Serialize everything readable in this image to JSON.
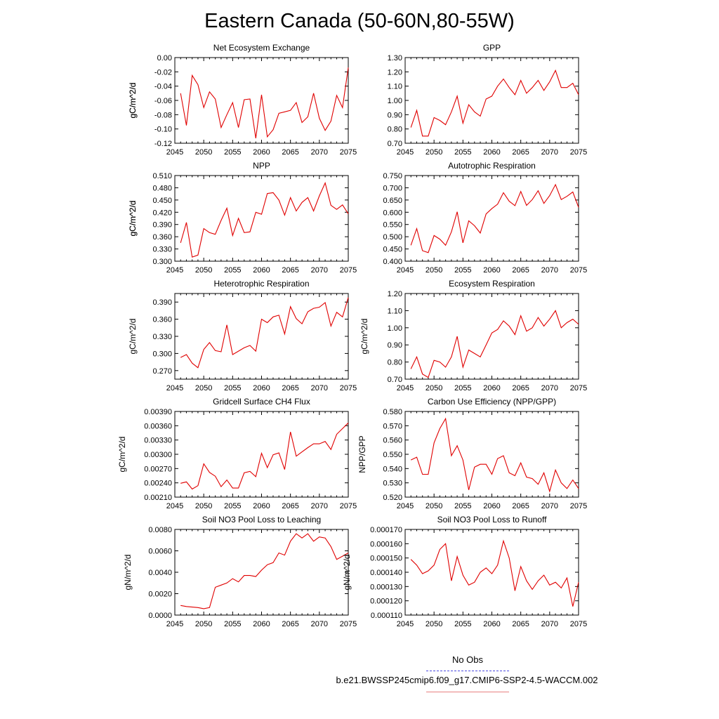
{
  "figure": {
    "title": "Eastern Canada (50-60N,80-55W)",
    "legend": {
      "obs_label": "No Obs",
      "model_label": "b.e21.BWSSP245cmip6.f09_g17.CMIP6-SSP2-4.5-WACCM.002",
      "obs_color": "#4a4ae0",
      "model_color": "#e88080"
    }
  },
  "chart_data": [
    {
      "type": "line",
      "title": "Net Ecosystem Exchange",
      "ylabel": "gC/m^2/d",
      "xlim": [
        2045,
        2075
      ],
      "xticks": [
        "2045",
        "2050",
        "2055",
        "2060",
        "2065",
        "2070",
        "2075"
      ],
      "ylim": [
        -0.12,
        0.0
      ],
      "yticks": [
        "-0.12",
        "-0.10",
        "-0.08",
        "-0.06",
        "-0.04",
        "-0.02",
        "0.00"
      ],
      "color": "#e00000",
      "x": [
        2046,
        2047,
        2048,
        2049,
        2050,
        2051,
        2052,
        2053,
        2054,
        2055,
        2056,
        2057,
        2058,
        2059,
        2060,
        2061,
        2062,
        2063,
        2064,
        2065,
        2066,
        2067,
        2068,
        2069,
        2070,
        2071,
        2072,
        2073,
        2074,
        2075
      ],
      "y": [
        -0.05,
        -0.095,
        -0.025,
        -0.038,
        -0.07,
        -0.048,
        -0.058,
        -0.098,
        -0.08,
        -0.063,
        -0.098,
        -0.059,
        -0.058,
        -0.113,
        -0.052,
        -0.111,
        -0.101,
        -0.078,
        -0.076,
        -0.074,
        -0.063,
        -0.091,
        -0.083,
        -0.05,
        -0.085,
        -0.102,
        -0.089,
        -0.053,
        -0.07,
        -0.014
      ]
    },
    {
      "type": "line",
      "title": "GPP",
      "ylabel": "gC/m^2/d",
      "xlim": [
        2045,
        2075
      ],
      "xticks": [
        "2045",
        "2050",
        "2055",
        "2060",
        "2065",
        "2070",
        "2075"
      ],
      "ylim": [
        0.7,
        1.3
      ],
      "yticks": [
        "0.70",
        "0.80",
        "0.90",
        "1.00",
        "1.10",
        "1.20",
        "1.30"
      ],
      "color": "#e00000",
      "x": [
        2046,
        2047,
        2048,
        2049,
        2050,
        2051,
        2052,
        2053,
        2054,
        2055,
        2056,
        2057,
        2058,
        2059,
        2060,
        2061,
        2062,
        2063,
        2064,
        2065,
        2066,
        2067,
        2068,
        2069,
        2070,
        2071,
        2072,
        2073,
        2074,
        2075
      ],
      "y": [
        0.81,
        0.93,
        0.75,
        0.75,
        0.88,
        0.86,
        0.83,
        0.92,
        1.03,
        0.84,
        0.97,
        0.92,
        0.89,
        1.01,
        1.03,
        1.1,
        1.15,
        1.09,
        1.04,
        1.14,
        1.05,
        1.09,
        1.14,
        1.07,
        1.13,
        1.21,
        1.09,
        1.09,
        1.12,
        1.04
      ]
    },
    {
      "type": "line",
      "title": "NPP",
      "ylabel": "gC/m^2/d",
      "xlim": [
        2045,
        2075
      ],
      "xticks": [
        "2045",
        "2050",
        "2055",
        "2060",
        "2065",
        "2070",
        "2075"
      ],
      "ylim": [
        0.3,
        0.51
      ],
      "yticks": [
        "0.300",
        "0.330",
        "0.360",
        "0.390",
        "0.420",
        "0.450",
        "0.480",
        "0.510"
      ],
      "color": "#e00000",
      "x": [
        2046,
        2047,
        2048,
        2049,
        2050,
        2051,
        2052,
        2053,
        2054,
        2055,
        2056,
        2057,
        2058,
        2059,
        2060,
        2061,
        2062,
        2063,
        2064,
        2065,
        2066,
        2067,
        2068,
        2069,
        2070,
        2071,
        2072,
        2073,
        2074,
        2075
      ],
      "y": [
        0.345,
        0.395,
        0.31,
        0.315,
        0.38,
        0.37,
        0.366,
        0.4,
        0.43,
        0.363,
        0.405,
        0.37,
        0.372,
        0.42,
        0.415,
        0.466,
        0.468,
        0.45,
        0.413,
        0.456,
        0.423,
        0.444,
        0.456,
        0.423,
        0.46,
        0.492,
        0.437,
        0.427,
        0.438,
        0.416
      ]
    },
    {
      "type": "line",
      "title": "Autotrophic Respiration",
      "ylabel": "gC/m^2/d",
      "xlim": [
        2045,
        2075
      ],
      "xticks": [
        "2045",
        "2050",
        "2055",
        "2060",
        "2065",
        "2070",
        "2075"
      ],
      "ylim": [
        0.4,
        0.75
      ],
      "yticks": [
        "0.400",
        "0.450",
        "0.500",
        "0.550",
        "0.600",
        "0.650",
        "0.700",
        "0.750"
      ],
      "color": "#e00000",
      "x": [
        2046,
        2047,
        2048,
        2049,
        2050,
        2051,
        2052,
        2053,
        2054,
        2055,
        2056,
        2057,
        2058,
        2059,
        2060,
        2061,
        2062,
        2063,
        2064,
        2065,
        2066,
        2067,
        2068,
        2069,
        2070,
        2071,
        2072,
        2073,
        2074,
        2075
      ],
      "y": [
        0.465,
        0.533,
        0.443,
        0.435,
        0.505,
        0.49,
        0.465,
        0.52,
        0.602,
        0.475,
        0.565,
        0.545,
        0.515,
        0.593,
        0.615,
        0.633,
        0.68,
        0.645,
        0.627,
        0.685,
        0.628,
        0.652,
        0.688,
        0.636,
        0.668,
        0.713,
        0.652,
        0.665,
        0.683,
        0.62
      ]
    },
    {
      "type": "line",
      "title": "Heterotrophic Respiration",
      "ylabel": "gC/m^2/d",
      "xlim": [
        2045,
        2075
      ],
      "xticks": [
        "2045",
        "2050",
        "2055",
        "2060",
        "2065",
        "2070",
        "2075"
      ],
      "ylim": [
        0.255,
        0.405
      ],
      "yticks": [
        "0.270",
        "0.300",
        "0.330",
        "0.360",
        "0.390"
      ],
      "color": "#e00000",
      "x": [
        2046,
        2047,
        2048,
        2049,
        2050,
        2051,
        2052,
        2053,
        2054,
        2055,
        2056,
        2057,
        2058,
        2059,
        2060,
        2061,
        2062,
        2063,
        2064,
        2065,
        2066,
        2067,
        2068,
        2069,
        2070,
        2071,
        2072,
        2073,
        2074,
        2075
      ],
      "y": [
        0.293,
        0.298,
        0.283,
        0.275,
        0.307,
        0.319,
        0.305,
        0.303,
        0.35,
        0.298,
        0.304,
        0.31,
        0.314,
        0.304,
        0.36,
        0.354,
        0.364,
        0.367,
        0.334,
        0.382,
        0.361,
        0.352,
        0.373,
        0.379,
        0.381,
        0.389,
        0.348,
        0.372,
        0.364,
        0.398
      ]
    },
    {
      "type": "line",
      "title": "Ecosystem Respiration",
      "ylabel": "gC/m^2/d",
      "xlim": [
        2045,
        2075
      ],
      "xticks": [
        "2045",
        "2050",
        "2055",
        "2060",
        "2065",
        "2070",
        "2075"
      ],
      "ylim": [
        0.7,
        1.2
      ],
      "yticks": [
        "0.70",
        "0.80",
        "0.90",
        "1.00",
        "1.10",
        "1.20"
      ],
      "color": "#e00000",
      "x": [
        2046,
        2047,
        2048,
        2049,
        2050,
        2051,
        2052,
        2053,
        2054,
        2055,
        2056,
        2057,
        2058,
        2059,
        2060,
        2061,
        2062,
        2063,
        2064,
        2065,
        2066,
        2067,
        2068,
        2069,
        2070,
        2071,
        2072,
        2073,
        2074,
        2075
      ],
      "y": [
        0.76,
        0.83,
        0.73,
        0.71,
        0.81,
        0.8,
        0.77,
        0.83,
        0.95,
        0.77,
        0.87,
        0.85,
        0.83,
        0.9,
        0.97,
        0.99,
        1.04,
        1.01,
        0.96,
        1.07,
        0.98,
        1.0,
        1.06,
        1.01,
        1.05,
        1.1,
        1.0,
        1.03,
        1.05,
        1.02
      ]
    },
    {
      "type": "line",
      "title": "Gridcell Surface CH4 Flux",
      "ylabel": "gC/m^2/d",
      "xlim": [
        2045,
        2075
      ],
      "xticks": [
        "2045",
        "2050",
        "2055",
        "2060",
        "2065",
        "2070",
        "2075"
      ],
      "ylim": [
        0.0021,
        0.0039
      ],
      "yticks": [
        "0.00210",
        "0.00240",
        "0.00270",
        "0.00300",
        "0.00330",
        "0.00360",
        "0.00390"
      ],
      "color": "#e00000",
      "x": [
        2046,
        2047,
        2048,
        2049,
        2050,
        2051,
        2052,
        2053,
        2054,
        2055,
        2056,
        2057,
        2058,
        2059,
        2060,
        2061,
        2062,
        2063,
        2064,
        2065,
        2066,
        2067,
        2068,
        2069,
        2070,
        2071,
        2072,
        2073,
        2074,
        2075
      ],
      "y": [
        0.00239,
        0.00242,
        0.00227,
        0.00234,
        0.0028,
        0.00262,
        0.00254,
        0.00232,
        0.00246,
        0.00229,
        0.00229,
        0.00261,
        0.00264,
        0.00253,
        0.00302,
        0.00272,
        0.00299,
        0.00303,
        0.00268,
        0.00347,
        0.00296,
        0.00305,
        0.00314,
        0.00322,
        0.00322,
        0.00327,
        0.0031,
        0.00342,
        0.00354,
        0.00366
      ]
    },
    {
      "type": "line",
      "title": "Carbon Use Efficiency (NPP/GPP)",
      "ylabel": "NPP/GPP",
      "xlim": [
        2045,
        2075
      ],
      "xticks": [
        "2045",
        "2050",
        "2055",
        "2060",
        "2065",
        "2070",
        "2075"
      ],
      "ylim": [
        0.52,
        0.58
      ],
      "yticks": [
        "0.520",
        "0.530",
        "0.540",
        "0.550",
        "0.560",
        "0.570",
        "0.580"
      ],
      "color": "#e00000",
      "x": [
        2046,
        2047,
        2048,
        2049,
        2050,
        2051,
        2052,
        2053,
        2054,
        2055,
        2056,
        2057,
        2058,
        2059,
        2060,
        2061,
        2062,
        2063,
        2064,
        2065,
        2066,
        2067,
        2068,
        2069,
        2070,
        2071,
        2072,
        2073,
        2074,
        2075
      ],
      "y": [
        0.546,
        0.548,
        0.536,
        0.536,
        0.558,
        0.568,
        0.575,
        0.549,
        0.556,
        0.546,
        0.525,
        0.541,
        0.543,
        0.543,
        0.536,
        0.547,
        0.549,
        0.537,
        0.535,
        0.544,
        0.534,
        0.533,
        0.529,
        0.537,
        0.524,
        0.539,
        0.53,
        0.526,
        0.532,
        0.526
      ]
    },
    {
      "type": "line",
      "title": "Soil NO3 Pool Loss to Leaching",
      "ylabel": "gN/m^2/d",
      "xlim": [
        2045,
        2075
      ],
      "xticks": [
        "2045",
        "2050",
        "2055",
        "2060",
        "2065",
        "2070",
        "2075"
      ],
      "ylim": [
        0.0,
        0.008
      ],
      "yticks": [
        "0.0000",
        "0.0020",
        "0.0040",
        "0.0060",
        "0.0080"
      ],
      "color": "#e00000",
      "x": [
        2046,
        2047,
        2048,
        2049,
        2050,
        2051,
        2052,
        2053,
        2054,
        2055,
        2056,
        2057,
        2058,
        2059,
        2060,
        2061,
        2062,
        2063,
        2064,
        2065,
        2066,
        2067,
        2068,
        2069,
        2070,
        2071,
        2072,
        2073,
        2074,
        2075
      ],
      "y": [
        0.0009,
        0.0008,
        0.00075,
        0.0007,
        0.0006,
        0.0007,
        0.0026,
        0.0028,
        0.003,
        0.0034,
        0.0031,
        0.0037,
        0.0037,
        0.0036,
        0.0042,
        0.0047,
        0.0049,
        0.0058,
        0.0056,
        0.0069,
        0.0076,
        0.0072,
        0.0076,
        0.0069,
        0.0073,
        0.0072,
        0.0064,
        0.0052,
        0.0055,
        0.0058
      ]
    },
    {
      "type": "line",
      "title": "Soil NO3 Pool Loss to Runoff",
      "ylabel": "gN/m^2/d",
      "xlim": [
        2045,
        2075
      ],
      "xticks": [
        "2045",
        "2050",
        "2055",
        "2060",
        "2065",
        "2070",
        "2075"
      ],
      "ylim": [
        0.00011,
        0.00017
      ],
      "yticks": [
        "0.000110",
        "0.000120",
        "0.000130",
        "0.000140",
        "0.000150",
        "0.000160",
        "0.000170"
      ],
      "color": "#e00000",
      "x": [
        2046,
        2047,
        2048,
        2049,
        2050,
        2051,
        2052,
        2053,
        2054,
        2055,
        2056,
        2057,
        2058,
        2059,
        2060,
        2061,
        2062,
        2063,
        2064,
        2065,
        2066,
        2067,
        2068,
        2069,
        2070,
        2071,
        2072,
        2073,
        2074,
        2075
      ],
      "y": [
        0.000149,
        0.000145,
        0.000139,
        0.000141,
        0.000145,
        0.000156,
        0.00016,
        0.000134,
        0.000151,
        0.000138,
        0.000131,
        0.000133,
        0.00014,
        0.000143,
        0.000139,
        0.000145,
        0.000162,
        0.00015,
        0.000127,
        0.000144,
        0.000134,
        0.000128,
        0.000134,
        0.000138,
        0.000131,
        0.000133,
        0.000129,
        0.000136,
        0.000116,
        0.000133
      ]
    }
  ]
}
